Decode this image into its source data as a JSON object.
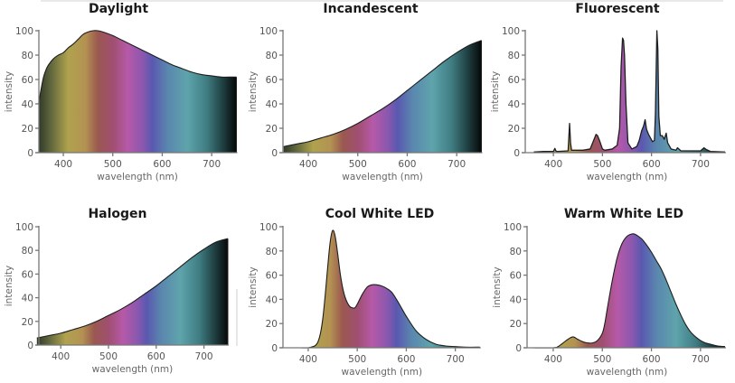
{
  "colors": {
    "outline": "#1e1e1e",
    "axis": "#777777",
    "spectrum_stops": [
      {
        "nm": 350,
        "color": "#2f3a2a"
      },
      {
        "nm": 380,
        "color": "#6b7040"
      },
      {
        "nm": 410,
        "color": "#b0a24e"
      },
      {
        "nm": 445,
        "color": "#b39252"
      },
      {
        "nm": 470,
        "color": "#9a5850"
      },
      {
        "nm": 500,
        "color": "#a04f70"
      },
      {
        "nm": 530,
        "color": "#b659a8"
      },
      {
        "nm": 560,
        "color": "#8c58ae"
      },
      {
        "nm": 580,
        "color": "#5a58b0"
      },
      {
        "nm": 610,
        "color": "#5a86ae"
      },
      {
        "nm": 650,
        "color": "#5fa4ac"
      },
      {
        "nm": 690,
        "color": "#3f7d82"
      },
      {
        "nm": 725,
        "color": "#1d3a3c"
      },
      {
        "nm": 750,
        "color": "#050808"
      }
    ]
  },
  "chart_data": [
    {
      "type": "area",
      "title": "Daylight",
      "xlabel": "wavelength (nm)",
      "ylabel": "intensity",
      "xlim": [
        350,
        750
      ],
      "ylim": [
        0,
        100
      ],
      "xticks": [
        "400",
        "500",
        "600",
        "700"
      ],
      "yticks": [
        "0",
        "20",
        "40",
        "60",
        "80",
        "100"
      ],
      "x": [
        350,
        355,
        360,
        365,
        370,
        380,
        390,
        400,
        410,
        420,
        430,
        440,
        450,
        460,
        470,
        480,
        500,
        520,
        540,
        560,
        580,
        600,
        620,
        640,
        660,
        680,
        700,
        720,
        740,
        750
      ],
      "y": [
        40,
        52,
        62,
        68,
        72,
        77,
        80,
        82,
        86,
        89,
        93,
        97,
        99,
        100,
        100,
        99,
        96,
        92,
        88,
        84,
        80,
        76,
        72,
        69,
        66,
        64,
        63,
        62,
        62,
        62
      ]
    },
    {
      "type": "area",
      "title": "Incandescent",
      "xlabel": "wavelength (nm)",
      "ylabel": "intensity",
      "xlim": [
        350,
        750
      ],
      "ylim": [
        0,
        100
      ],
      "xticks": [
        "400",
        "500",
        "600",
        "700"
      ],
      "yticks": [
        "0",
        "20",
        "40",
        "60",
        "80",
        "100"
      ],
      "x": [
        350,
        375,
        400,
        425,
        450,
        475,
        500,
        525,
        550,
        575,
        600,
        625,
        650,
        675,
        700,
        725,
        750
      ],
      "y": [
        5,
        7,
        9,
        12,
        15,
        19,
        24,
        30,
        36,
        43,
        51,
        59,
        67,
        75,
        82,
        88,
        92
      ]
    },
    {
      "type": "area",
      "title": "Fluorescent",
      "xlabel": "wavelength (nm)",
      "ylabel": "intensity",
      "xlim": [
        350,
        750
      ],
      "ylim": [
        0,
        100
      ],
      "xticks": [
        "400",
        "500",
        "600",
        "700"
      ],
      "yticks": [
        "0",
        "20",
        "40",
        "60",
        "80",
        "100"
      ],
      "x": [
        360,
        380,
        400,
        403,
        405,
        407,
        410,
        430,
        433,
        435,
        437,
        440,
        460,
        475,
        482,
        487,
        490,
        494,
        500,
        505,
        520,
        530,
        535,
        538,
        541,
        543,
        545,
        548,
        552,
        560,
        570,
        575,
        580,
        584,
        587,
        590,
        594,
        598,
        602,
        606,
        608,
        611,
        613,
        615,
        618,
        622,
        626,
        630,
        633,
        640,
        650,
        653,
        660,
        700,
        707,
        712,
        720,
        750
      ],
      "y": [
        0.5,
        1,
        1,
        3.5,
        1.5,
        1,
        1,
        1.5,
        24,
        8,
        2,
        2,
        2,
        3,
        10,
        15,
        14,
        10,
        3,
        2,
        3,
        6,
        20,
        70,
        94,
        92,
        80,
        40,
        8,
        3,
        5,
        10,
        18,
        22,
        27,
        19,
        15,
        12,
        9,
        10,
        32,
        100,
        85,
        30,
        14,
        14,
        11,
        16,
        8,
        3,
        2,
        4,
        1.5,
        1.5,
        4,
        2.5,
        1,
        0.5
      ]
    },
    {
      "type": "area",
      "title": "Halogen",
      "xlabel": "wavelength (nm)",
      "ylabel": "intensity",
      "xlim": [
        350,
        750
      ],
      "ylim": [
        0,
        100
      ],
      "xticks": [
        "400",
        "500",
        "600",
        "700"
      ],
      "yticks": [
        "0",
        "20",
        "40",
        "60",
        "80",
        "100"
      ],
      "x": [
        350,
        375,
        400,
        425,
        450,
        475,
        500,
        525,
        550,
        575,
        600,
        625,
        650,
        675,
        700,
        725,
        750
      ],
      "y": [
        6,
        8,
        10,
        13,
        16,
        20,
        25,
        30,
        36,
        43,
        50,
        58,
        66,
        74,
        81,
        87,
        90
      ]
    },
    {
      "type": "area",
      "title": "Cool White LED",
      "xlabel": "wavelength (nm)",
      "ylabel": "intensity",
      "xlim": [
        350,
        750
      ],
      "ylim": [
        0,
        100
      ],
      "xticks": [
        "400",
        "500",
        "600",
        "700"
      ],
      "yticks": [
        "0",
        "20",
        "40",
        "60",
        "80",
        "100"
      ],
      "x": [
        385,
        400,
        410,
        415,
        420,
        425,
        430,
        435,
        440,
        445,
        450,
        455,
        460,
        465,
        470,
        475,
        480,
        485,
        490,
        495,
        500,
        510,
        520,
        530,
        540,
        550,
        560,
        570,
        580,
        590,
        600,
        620,
        640,
        660,
        680,
        700,
        720,
        750
      ],
      "y": [
        0,
        0,
        1,
        2,
        5,
        12,
        25,
        45,
        68,
        88,
        97,
        92,
        78,
        62,
        50,
        42,
        37,
        34,
        33,
        33,
        36,
        44,
        50,
        52,
        52,
        51,
        49,
        46,
        40,
        33,
        26,
        14,
        7,
        3,
        1.5,
        1,
        0.5,
        0.5
      ]
    },
    {
      "type": "area",
      "title": "Warm White LED",
      "xlabel": "wavelength (nm)",
      "ylabel": "intensity",
      "xlim": [
        350,
        750
      ],
      "ylim": [
        0,
        100
      ],
      "xticks": [
        "400",
        "500",
        "600",
        "700"
      ],
      "yticks": [
        "0",
        "20",
        "40",
        "60",
        "80",
        "100"
      ],
      "x": [
        355,
        400,
        410,
        420,
        430,
        440,
        450,
        460,
        470,
        480,
        490,
        500,
        505,
        510,
        520,
        530,
        540,
        550,
        560,
        565,
        570,
        580,
        590,
        600,
        610,
        620,
        630,
        640,
        650,
        660,
        670,
        680,
        690,
        700,
        710,
        720,
        735,
        750
      ],
      "y": [
        0,
        0,
        1,
        4,
        7,
        9,
        7,
        5,
        4,
        4,
        6,
        12,
        20,
        32,
        55,
        74,
        86,
        92,
        94,
        94,
        93,
        90,
        85,
        79,
        72,
        65,
        56,
        46,
        36,
        27,
        19,
        13,
        9,
        6,
        4,
        3,
        1.5,
        1
      ]
    }
  ]
}
